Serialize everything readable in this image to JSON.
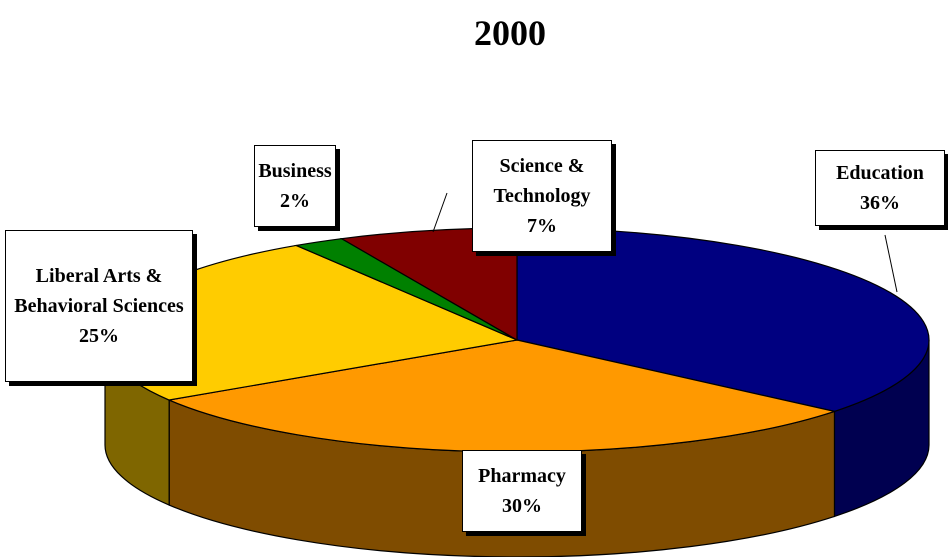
{
  "chart_data": {
    "type": "pie",
    "title": "2000",
    "categories": [
      "Education",
      "Pharmacy",
      "Liberal Arts & Behavioral Sciences",
      "Business",
      "Science & Technology"
    ],
    "values": [
      36,
      30,
      25,
      2,
      7
    ],
    "value_labels": [
      "36%",
      "30%",
      "25%",
      "2%",
      "7%"
    ],
    "colors": [
      "#000080",
      "#ff9900",
      "#ffcc00",
      "#008000",
      "#800000"
    ],
    "side_colors": [
      "#000050",
      "#7f4c00",
      "#7f6600",
      "#004000",
      "#400000"
    ]
  }
}
